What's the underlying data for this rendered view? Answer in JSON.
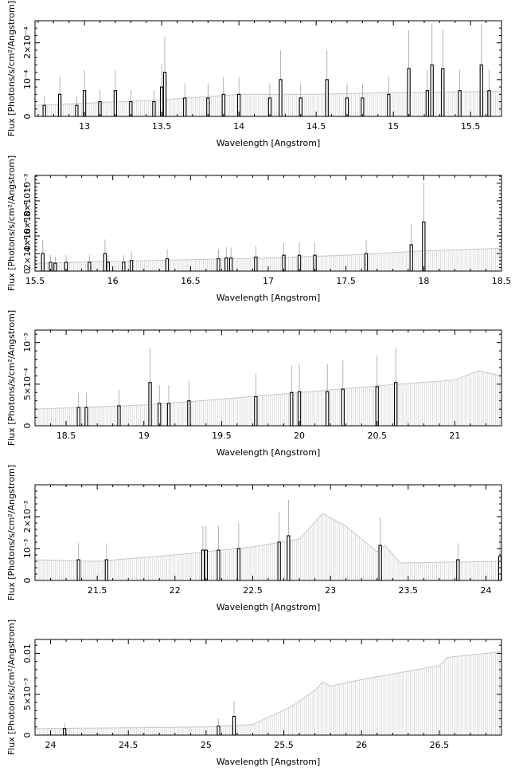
{
  "chart_data": [
    {
      "type": "bar",
      "xlabel": "Wavelength [Angstrom]",
      "ylabel": "Flux [Photons/s/cm²/Angstrom]",
      "xlim": [
        12.68,
        15.7
      ],
      "ylim": [
        0,
        0.00026
      ],
      "xticks": [
        13,
        13.5,
        14,
        14.5,
        15,
        15.5
      ],
      "xtick_labels": [
        "13",
        "13.5",
        "14",
        "14.5",
        "15",
        "15.5"
      ],
      "yticks": [
        0,
        0.0001,
        0.0002
      ],
      "ytick_labels": [
        "0",
        "10⁻⁴",
        "2×10⁻⁴"
      ],
      "continuum": [
        [
          12.68,
          3e-05
        ],
        [
          13.5,
          4.5e-05
        ],
        [
          14.0,
          6e-05
        ],
        [
          14.5,
          6e-05
        ],
        [
          15.0,
          6.5e-05
        ],
        [
          15.7,
          6.8e-05
        ]
      ],
      "lines": [
        [
          12.74,
          3e-05
        ],
        [
          12.84,
          6e-05
        ],
        [
          12.95,
          3e-05
        ],
        [
          13.0,
          7e-05
        ],
        [
          13.1,
          4e-05
        ],
        [
          13.2,
          7e-05
        ],
        [
          13.3,
          4e-05
        ],
        [
          13.45,
          4e-05
        ],
        [
          13.5,
          8e-05
        ],
        [
          13.52,
          0.00012
        ],
        [
          13.65,
          5e-05
        ],
        [
          13.8,
          5e-05
        ],
        [
          13.9,
          6e-05
        ],
        [
          14.0,
          6e-05
        ],
        [
          14.2,
          5e-05
        ],
        [
          14.27,
          0.0001
        ],
        [
          14.4,
          5e-05
        ],
        [
          14.57,
          0.0001
        ],
        [
          14.7,
          5e-05
        ],
        [
          14.8,
          5e-05
        ],
        [
          14.97,
          6e-05
        ],
        [
          15.1,
          0.00013
        ],
        [
          15.22,
          7e-05
        ],
        [
          15.25,
          0.00014
        ],
        [
          15.32,
          0.00013
        ],
        [
          15.43,
          7e-05
        ],
        [
          15.57,
          0.00014
        ],
        [
          15.62,
          7e-05
        ]
      ]
    },
    {
      "type": "bar",
      "xlabel": "Wavelength [Angstrom]",
      "ylabel": "Flux [Photons/s/cm²/Angstrom]",
      "xlim": [
        15.5,
        18.5
      ],
      "ylim": [
        0,
        0.00109
      ],
      "xticks": [
        15.5,
        16,
        16.5,
        17,
        17.5,
        18,
        18.5
      ],
      "xtick_labels": [
        "15.5",
        "16",
        "16.5",
        "17",
        "17.5",
        "18",
        "18.5"
      ],
      "yticks": [
        0,
        0.0002,
        0.0004,
        0.0006,
        0.0008,
        0.001
      ],
      "ytick_labels": [
        "0",
        "2×10⁻⁴",
        "4×10⁻⁴",
        "6×10⁻⁴",
        "8×10⁻⁴",
        "10⁻³"
      ],
      "continuum": [
        [
          15.5,
          9e-05
        ],
        [
          16.5,
          0.00013
        ],
        [
          17.0,
          0.00015
        ],
        [
          17.5,
          0.00018
        ],
        [
          18.0,
          0.00023
        ],
        [
          18.5,
          0.00026
        ]
      ],
      "lines": [
        [
          15.55,
          0.0002
        ],
        [
          15.6,
          0.0001
        ],
        [
          15.63,
          9e-05
        ],
        [
          15.7,
          0.0001
        ],
        [
          15.85,
          0.0001
        ],
        [
          15.95,
          0.0002
        ],
        [
          15.97,
          0.0001
        ],
        [
          16.07,
          0.0001
        ],
        [
          16.12,
          0.00012
        ],
        [
          16.35,
          0.00014
        ],
        [
          16.68,
          0.00014
        ],
        [
          16.73,
          0.00015
        ],
        [
          16.76,
          0.00015
        ],
        [
          16.92,
          0.00016
        ],
        [
          17.1,
          0.00018
        ],
        [
          17.2,
          0.00018
        ],
        [
          17.3,
          0.00018
        ],
        [
          17.63,
          0.0002
        ],
        [
          17.92,
          0.0003
        ],
        [
          18.0,
          0.00056
        ]
      ]
    },
    {
      "type": "bar",
      "xlabel": "Wavelength [Angstrom]",
      "ylabel": "Flux [Photons/s/cm²/Angstrom]",
      "xlim": [
        18.3,
        21.3
      ],
      "ylim": [
        0,
        0.00115
      ],
      "xticks": [
        18.5,
        19,
        19.5,
        20,
        20.5,
        21
      ],
      "xtick_labels": [
        "18.5",
        "19",
        "19.5",
        "20",
        "20.5",
        "21"
      ],
      "yticks": [
        0,
        0.0005,
        0.001
      ],
      "ytick_labels": [
        "0",
        "5×10⁻⁴",
        "10⁻³"
      ],
      "continuum": [
        [
          18.3,
          0.0002
        ],
        [
          19.0,
          0.00025
        ],
        [
          19.5,
          0.00032
        ],
        [
          20.0,
          0.0004
        ],
        [
          20.5,
          0.00048
        ],
        [
          21.0,
          0.00055
        ],
        [
          21.15,
          0.00066
        ],
        [
          21.3,
          0.0006
        ]
      ],
      "lines": [
        [
          18.58,
          0.00022
        ],
        [
          18.63,
          0.00022
        ],
        [
          18.84,
          0.00024
        ],
        [
          19.04,
          0.00052
        ],
        [
          19.1,
          0.00027
        ],
        [
          19.16,
          0.00027
        ],
        [
          19.29,
          0.0003
        ],
        [
          19.72,
          0.00035
        ],
        [
          19.95,
          0.0004
        ],
        [
          20.0,
          0.00041
        ],
        [
          20.18,
          0.00041
        ],
        [
          20.28,
          0.00044
        ],
        [
          20.5,
          0.00047
        ],
        [
          20.62,
          0.00052
        ]
      ]
    },
    {
      "type": "bar",
      "xlabel": "Wavelength [Angstrom]",
      "ylabel": "Flux [Photons/s/cm²/Angstrom]",
      "xlim": [
        21.1,
        24.1
      ],
      "ylim": [
        0,
        0.003
      ],
      "xticks": [
        21.5,
        22,
        22.5,
        23,
        23.5,
        24
      ],
      "xtick_labels": [
        "21.5",
        "22",
        "22.5",
        "23",
        "23.5",
        "24"
      ],
      "yticks": [
        0,
        0.001,
        0.002
      ],
      "ytick_labels": [
        "0",
        "10⁻³",
        "2×10⁻³"
      ],
      "continuum": [
        [
          21.1,
          0.00065
        ],
        [
          21.5,
          0.0006
        ],
        [
          22.0,
          0.0008
        ],
        [
          22.5,
          0.00105
        ],
        [
          22.8,
          0.0013
        ],
        [
          22.95,
          0.0021
        ],
        [
          23.1,
          0.0017
        ],
        [
          23.3,
          0.0009
        ],
        [
          23.35,
          0.0011
        ],
        [
          23.45,
          0.00055
        ],
        [
          24.1,
          0.0006
        ]
      ],
      "lines": [
        [
          21.38,
          0.00065
        ],
        [
          21.56,
          0.00065
        ],
        [
          22.18,
          0.00095
        ],
        [
          22.2,
          0.00095
        ],
        [
          22.28,
          0.00095
        ],
        [
          22.41,
          0.001
        ],
        [
          22.67,
          0.0012
        ],
        [
          22.73,
          0.0014
        ],
        [
          23.32,
          0.0011
        ],
        [
          23.82,
          0.00065
        ],
        [
          24.09,
          0.00075
        ]
      ]
    },
    {
      "type": "bar",
      "xlabel": "Wavelength [Angstrom]",
      "ylabel": "Flux [Photons/s/cm²/Angstrom]",
      "xlim": [
        23.9,
        26.9
      ],
      "ylim": [
        0,
        0.0117
      ],
      "xticks": [
        24,
        24.5,
        25,
        25.5,
        26,
        26.5
      ],
      "xtick_labels": [
        "24",
        "24.5",
        "25",
        "25.5",
        "26",
        "26.5"
      ],
      "yticks": [
        0,
        0.005,
        0.01
      ],
      "ytick_labels": [
        "0",
        "5×10⁻³",
        "0.01"
      ],
      "continuum": [
        [
          23.9,
          0.0008
        ],
        [
          24.5,
          0.0009
        ],
        [
          25.0,
          0.001
        ],
        [
          25.3,
          0.0013
        ],
        [
          25.55,
          0.0035
        ],
        [
          25.7,
          0.0055
        ],
        [
          25.75,
          0.0065
        ],
        [
          25.8,
          0.006
        ],
        [
          26.0,
          0.0068
        ],
        [
          26.5,
          0.0085
        ],
        [
          26.55,
          0.0095
        ],
        [
          26.9,
          0.0102
        ]
      ],
      "lines": [
        [
          24.09,
          0.0008
        ],
        [
          25.08,
          0.0011
        ],
        [
          25.18,
          0.0023
        ]
      ]
    }
  ]
}
